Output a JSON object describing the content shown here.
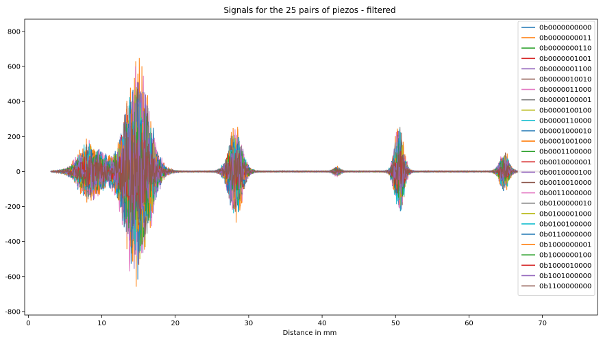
{
  "chart_data": {
    "type": "line",
    "title": "Signals for the 25 pairs of piezos - filtered",
    "xlabel": "Distance in mm",
    "ylabel": "",
    "xlim": [
      -0.5,
      77.5
    ],
    "ylim": [
      -820,
      870
    ],
    "xticks": [
      0,
      10,
      20,
      30,
      40,
      50,
      60,
      70
    ],
    "yticks": [
      -800,
      -600,
      -400,
      -200,
      0,
      200,
      400,
      600,
      800
    ],
    "grid": false,
    "legend_position": "top-right",
    "series": [
      {
        "name": "0b0000000000",
        "color": "#1f77b4"
      },
      {
        "name": "0b0000000011",
        "color": "#ff7f0e"
      },
      {
        "name": "0b0000000110",
        "color": "#2ca02c"
      },
      {
        "name": "0b0000001001",
        "color": "#d62728"
      },
      {
        "name": "0b0000001100",
        "color": "#9467bd"
      },
      {
        "name": "0b0000010010",
        "color": "#8c564b"
      },
      {
        "name": "0b0000011000",
        "color": "#e377c2"
      },
      {
        "name": "0b0000100001",
        "color": "#7f7f7f"
      },
      {
        "name": "0b0000100100",
        "color": "#bcbd22"
      },
      {
        "name": "0b0000110000",
        "color": "#17becf"
      },
      {
        "name": "0b0001000010",
        "color": "#1f77b4"
      },
      {
        "name": "0b0001001000",
        "color": "#ff7f0e"
      },
      {
        "name": "0b0001100000",
        "color": "#2ca02c"
      },
      {
        "name": "0b0010000001",
        "color": "#d62728"
      },
      {
        "name": "0b0010000100",
        "color": "#9467bd"
      },
      {
        "name": "0b0010010000",
        "color": "#8c564b"
      },
      {
        "name": "0b0011000000",
        "color": "#e377c2"
      },
      {
        "name": "0b0100000010",
        "color": "#7f7f7f"
      },
      {
        "name": "0b0100001000",
        "color": "#bcbd22"
      },
      {
        "name": "0b0100100000",
        "color": "#17becf"
      },
      {
        "name": "0b0110000000",
        "color": "#1f77b4"
      },
      {
        "name": "0b1000000001",
        "color": "#ff7f0e"
      },
      {
        "name": "0b1000000100",
        "color": "#2ca02c"
      },
      {
        "name": "0b1000010000",
        "color": "#d62728"
      },
      {
        "name": "0b1001000000",
        "color": "#9467bd"
      },
      {
        "name": "0b1100000000",
        "color": "#8c564b"
      }
    ],
    "signal_x_range": [
      3,
      72
    ],
    "bursts": [
      {
        "center": 8.5,
        "width": 1.6,
        "amp": 200
      },
      {
        "center": 14.8,
        "width": 1.6,
        "amp": 700
      },
      {
        "center": 28.2,
        "width": 0.9,
        "amp": 300
      },
      {
        "center": 42.0,
        "width": 0.4,
        "amp": 30
      },
      {
        "center": 50.5,
        "width": 0.6,
        "amp": 300
      },
      {
        "center": 64.8,
        "width": 0.6,
        "amp": 130
      }
    ]
  }
}
